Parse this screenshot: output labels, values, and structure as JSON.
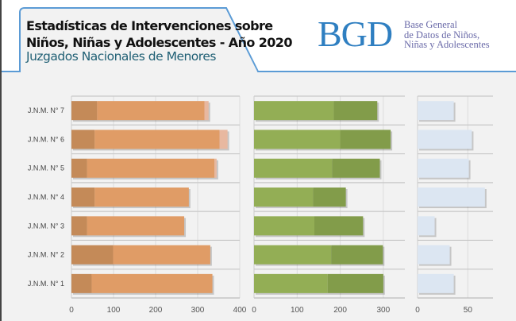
{
  "header": {
    "title_line1": "Estadísticas de Intervenciones sobre",
    "title_line2": "Niños, Niñas y Adolescentes - Año 2020",
    "subtitle": "Juzgados Nacionales de Menores",
    "logo": "BGD",
    "logo_sub1": "Base General",
    "logo_sub2": "de Datos de Niños,",
    "logo_sub3": "Niñas y Adolescentes"
  },
  "chart_data": [
    {
      "type": "bar",
      "orientation": "horizontal",
      "stacked": true,
      "categories": [
        "J.N.M. N° 7",
        "J.N.M. N° 6",
        "J.N.M. N° 5",
        "J.N.M. N° 4",
        "J.N.M. N° 3",
        "J.N.M. N° 2",
        "J.N.M. N° 1"
      ],
      "series": [
        {
          "values": [
            61,
            55,
            37,
            55,
            37,
            99,
            48
          ],
          "color": "#c48a58"
        },
        {
          "values": [
            255,
            297,
            303,
            224,
            231,
            231,
            287
          ],
          "color": "#e09c66"
        },
        {
          "values": [
            10,
            19,
            5,
            0,
            0,
            0,
            0
          ],
          "color": "#e8b8a0"
        }
      ],
      "xlim": [
        0,
        400
      ],
      "xticks": [
        0,
        100,
        200,
        300,
        400
      ],
      "grid": true
    },
    {
      "type": "bar",
      "orientation": "horizontal",
      "stacked": true,
      "categories": [
        "J.N.M. N° 7",
        "J.N.M. N° 6",
        "J.N.M. N° 5",
        "J.N.M. N° 4",
        "J.N.M. N° 3",
        "J.N.M. N° 2",
        "J.N.M. N° 1"
      ],
      "series": [
        {
          "values": [
            185,
            200,
            181,
            137,
            140,
            179,
            171
          ],
          "color": "#93ae55"
        },
        {
          "values": [
            101,
            117,
            111,
            76,
            113,
            120,
            129
          ],
          "color": "#829c4a"
        }
      ],
      "xlim": [
        0,
        350
      ],
      "xticks": [
        0,
        100,
        200,
        300
      ],
      "grid": true
    },
    {
      "type": "bar",
      "orientation": "horizontal",
      "categories": [
        "J.N.M. N° 7",
        "J.N.M. N° 6",
        "J.N.M. N° 5",
        "J.N.M. N° 4",
        "J.N.M. N° 3",
        "J.N.M. N° 2",
        "J.N.M. N° 1"
      ],
      "series": [
        {
          "values": [
            36,
            54,
            51,
            67,
            17,
            32,
            36
          ],
          "color": "#dce6f2"
        }
      ],
      "xlim": [
        0,
        75
      ],
      "xticks": [
        0,
        50
      ],
      "grid": true
    }
  ]
}
